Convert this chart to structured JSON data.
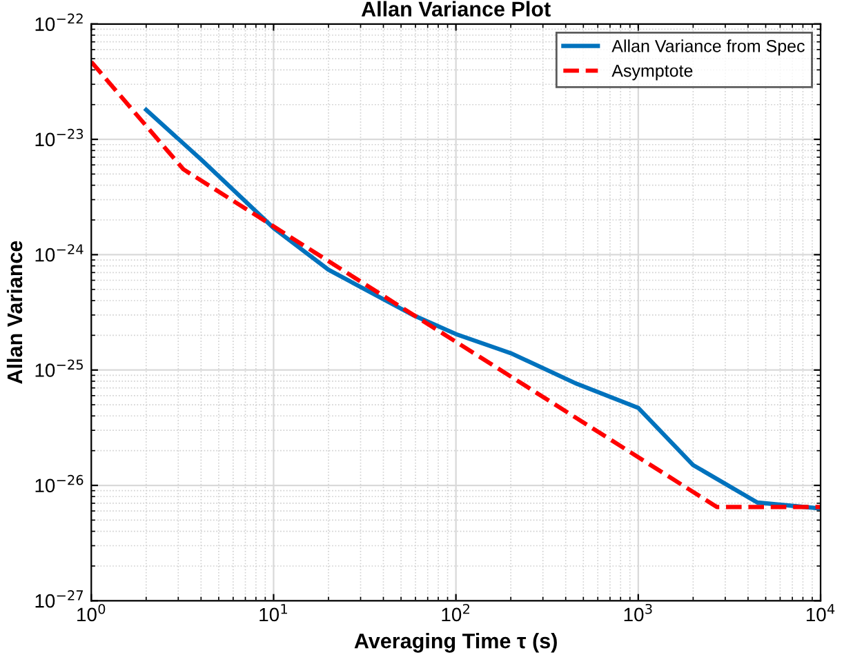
{
  "chart_data": {
    "type": "line",
    "title": "Allan Variance Plot",
    "xlabel": "Averaging Time τ (s)",
    "ylabel": "Allan Variance",
    "log": "xy",
    "grid": true,
    "legend": "top right",
    "line_style": "solid",
    "xlim": [
      1,
      10000
    ],
    "xticks": [
      {
        "value": 1,
        "label": "10$^{0}$"
      },
      {
        "value": 10,
        "label": "10$^{1}$"
      },
      {
        "value": 100,
        "label": "10$^{2}$"
      },
      {
        "value": 1000,
        "label": "10$^{3}$"
      },
      {
        "value": 10000,
        "label": "10$^{4}$"
      }
    ],
    "ylim": [
      1e-27,
      1e-22
    ],
    "yticks": [
      {
        "value": 1e-27,
        "label": "10$^{−27}$"
      },
      {
        "value": 1e-26,
        "label": "10$^{−26}$"
      },
      {
        "value": 1e-25,
        "label": "10$^{−25}$"
      },
      {
        "value": 1e-24,
        "label": "10$^{−24}$"
      },
      {
        "value": 1e-23,
        "label": "10$^{−23}$"
      },
      {
        "value": 1e-22,
        "label": "10$^{−22}$"
      }
    ],
    "series": [
      {
        "name": "Allan Variance from Spec",
        "color": "#0072bd",
        "x": [
          2,
          4,
          10,
          20,
          58,
          100,
          200,
          460,
          1000,
          2000,
          4500,
          10000
        ],
        "values": [
          1.8e-23,
          6.7e-24,
          1.7e-24,
          7.4e-25,
          3e-25,
          2.05e-25,
          1.4e-25,
          7.6e-26,
          4.7e-26,
          1.5e-26,
          7.1e-27,
          6.3e-27
        ]
      },
      {
        "name": "Asymptote",
        "color": "#ff0000",
        "line_style": "dashed",
        "x": [
          1,
          3.2,
          2700,
          10000
        ],
        "values": [
          4.7e-23,
          5.5e-24,
          6.5e-27,
          6.5e-27
        ]
      }
    ]
  }
}
